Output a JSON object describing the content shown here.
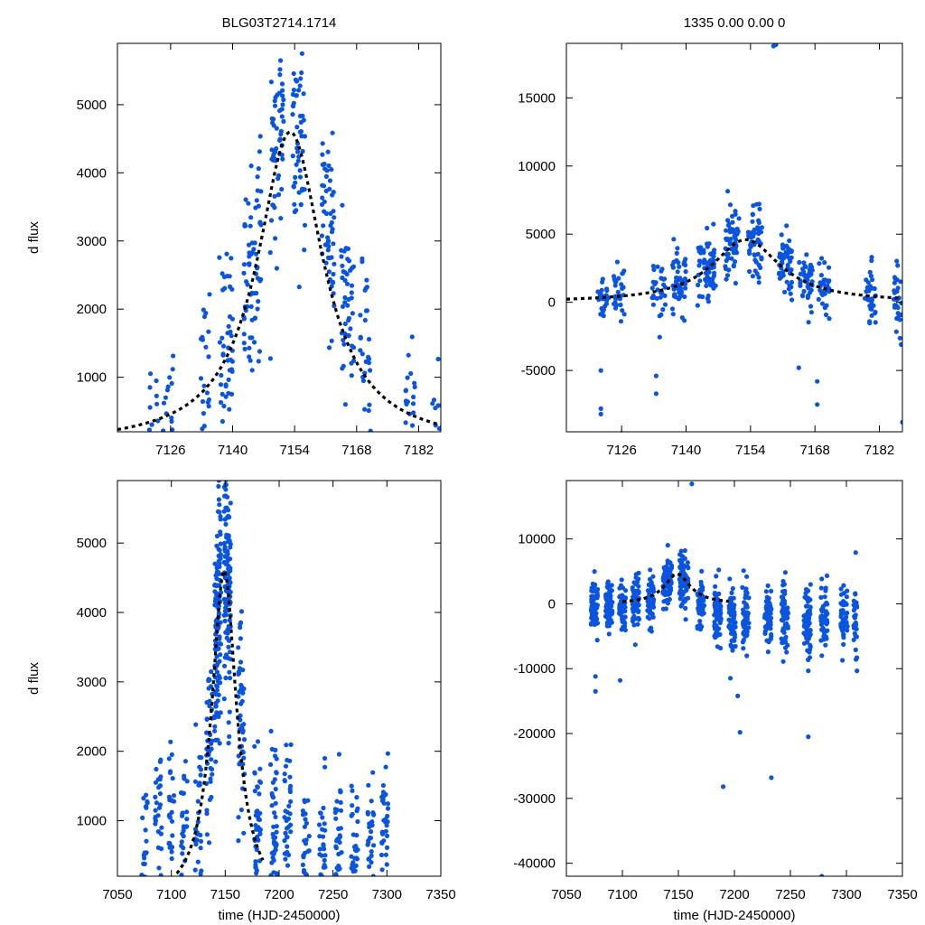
{
  "chart_data": [
    {
      "type": "scatter",
      "panel": "top-left",
      "title": "BLG03T2714.1714",
      "xlabel": "",
      "ylabel": "d flux",
      "xlim": [
        7114,
        7187
      ],
      "ylim": [
        200,
        5900
      ],
      "xticks": [
        7126,
        7140,
        7154,
        7168,
        7182
      ],
      "yticks": [
        1000,
        2000,
        3000,
        4000,
        5000
      ],
      "xtick_labels": [
        "7126",
        "7140",
        "7154",
        "7168",
        "7182"
      ],
      "ytick_labels": [
        "1000",
        "2000",
        "3000",
        "4000",
        "5000"
      ],
      "model": {
        "t0": 7153,
        "peak": 4600,
        "width": 9,
        "baseline": 0
      },
      "series": [
        {
          "name": "observations",
          "color": "#0a55e0",
          "clusters": [
            {
              "t": 7122,
              "spread": 1.2,
              "n": 18,
              "scale": 0.9,
              "noise": 600
            },
            {
              "t": 7125.5,
              "spread": 1.2,
              "n": 22,
              "scale": 1.0,
              "noise": 650
            },
            {
              "t": 7134,
              "spread": 1.5,
              "n": 25,
              "scale": 1.05,
              "noise": 700
            },
            {
              "t": 7138.5,
              "spread": 1.5,
              "n": 45,
              "scale": 1.15,
              "noise": 700
            },
            {
              "t": 7144.5,
              "spread": 2.0,
              "n": 70,
              "scale": 1.05,
              "noise": 750
            },
            {
              "t": 7150,
              "spread": 1.5,
              "n": 60,
              "scale": 1.1,
              "noise": 800
            },
            {
              "t": 7155,
              "spread": 1.5,
              "n": 55,
              "scale": 1.0,
              "noise": 800
            },
            {
              "t": 7161.5,
              "spread": 1.5,
              "n": 55,
              "scale": 1.35,
              "noise": 600
            },
            {
              "t": 7166,
              "spread": 1.5,
              "n": 45,
              "scale": 1.3,
              "noise": 600
            },
            {
              "t": 7170,
              "spread": 1.2,
              "n": 30,
              "scale": 1.2,
              "noise": 600
            },
            {
              "t": 7180,
              "spread": 1.2,
              "n": 25,
              "scale": 1.1,
              "noise": 500
            },
            {
              "t": 7186,
              "spread": 1.0,
              "n": 15,
              "scale": 1.0,
              "noise": 500
            }
          ]
        }
      ]
    },
    {
      "type": "scatter",
      "panel": "top-right",
      "title": "1335  0.00  0.00  0",
      "xlabel": "",
      "ylabel": "",
      "xlim": [
        7114,
        7187
      ],
      "ylim": [
        -9500,
        19000
      ],
      "xticks": [
        7126,
        7140,
        7154,
        7168,
        7182
      ],
      "yticks": [
        -5000,
        0,
        5000,
        10000,
        15000
      ],
      "xtick_labels": [
        "7126",
        "7140",
        "7154",
        "7168",
        "7182"
      ],
      "ytick_labels": [
        "-5000",
        "0",
        "5000",
        "10000",
        "15000"
      ],
      "model": {
        "t0": 7153,
        "peak": 4600,
        "width": 9,
        "baseline": 0
      },
      "outliers": [
        [
          7121.5,
          -8200
        ],
        [
          7121.5,
          -7800
        ],
        [
          7121.5,
          -5000
        ],
        [
          7126,
          -9600
        ],
        [
          7133.5,
          -6700
        ],
        [
          7133.5,
          -5400
        ],
        [
          7159,
          18800
        ],
        [
          7159.5,
          18900
        ],
        [
          7164.5,
          -4800
        ],
        [
          7168.5,
          -5800
        ],
        [
          7168.5,
          -7500
        ],
        [
          7187,
          -8800
        ]
      ],
      "series": [
        {
          "name": "observations",
          "color": "#0a55e0",
          "clusters": [
            {
              "t": 7122,
              "spread": 1.2,
              "n": 25,
              "scale": 1.0,
              "noise": 1100
            },
            {
              "t": 7125.5,
              "spread": 1.2,
              "n": 30,
              "scale": 1.0,
              "noise": 1200
            },
            {
              "t": 7134,
              "spread": 1.5,
              "n": 30,
              "scale": 1.0,
              "noise": 1200
            },
            {
              "t": 7138.5,
              "spread": 1.5,
              "n": 50,
              "scale": 1.1,
              "noise": 1100
            },
            {
              "t": 7144.5,
              "spread": 2.0,
              "n": 70,
              "scale": 1.0,
              "noise": 1200
            },
            {
              "t": 7150,
              "spread": 1.5,
              "n": 60,
              "scale": 1.05,
              "noise": 1300
            },
            {
              "t": 7155,
              "spread": 1.5,
              "n": 55,
              "scale": 1.0,
              "noise": 1300
            },
            {
              "t": 7161.5,
              "spread": 1.5,
              "n": 55,
              "scale": 1.2,
              "noise": 1100
            },
            {
              "t": 7166,
              "spread": 1.5,
              "n": 45,
              "scale": 1.2,
              "noise": 1100
            },
            {
              "t": 7170,
              "spread": 1.2,
              "n": 30,
              "scale": 1.1,
              "noise": 1100
            },
            {
              "t": 7180,
              "spread": 1.2,
              "n": 35,
              "scale": 1.0,
              "noise": 1200
            },
            {
              "t": 7186,
              "spread": 1.0,
              "n": 30,
              "scale": 1.0,
              "noise": 1300
            }
          ]
        }
      ]
    },
    {
      "type": "scatter",
      "panel": "bottom-left",
      "title": "",
      "xlabel": "time (HJD-2450000)",
      "ylabel": "d flux",
      "xlim": [
        7050,
        7350
      ],
      "ylim": [
        200,
        5900
      ],
      "xticks": [
        7050,
        7100,
        7150,
        7200,
        7250,
        7300,
        7350
      ],
      "yticks": [
        1000,
        2000,
        3000,
        4000,
        5000
      ],
      "xtick_labels": [
        "7050",
        "7100",
        "7150",
        "7200",
        "7250",
        "7300",
        "7350"
      ],
      "ytick_labels": [
        "1000",
        "2000",
        "3000",
        "4000",
        "5000"
      ],
      "model": {
        "t0": 7149,
        "peak": 4600,
        "width": 14,
        "baseline": -200,
        "xmin": 7105,
        "xmax": 7185
      },
      "series": [
        {
          "name": "observations",
          "color": "#0a55e0",
          "clusters": [
            {
              "t": 7075,
              "spread": 3,
              "n": 25,
              "scale": 0.0,
              "noise": 500,
              "offset": 700
            },
            {
              "t": 7088,
              "spread": 3,
              "n": 30,
              "scale": 0.0,
              "noise": 600,
              "offset": 800
            },
            {
              "t": 7100,
              "spread": 3,
              "n": 30,
              "scale": 0.0,
              "noise": 600,
              "offset": 800
            },
            {
              "t": 7112,
              "spread": 3,
              "n": 30,
              "scale": 0.0,
              "noise": 600,
              "offset": 900
            },
            {
              "t": 7125,
              "spread": 3,
              "n": 30,
              "scale": 0.0,
              "noise": 650,
              "offset": 1000
            },
            {
              "t": 7135,
              "spread": 3,
              "n": 40,
              "scale": 0.7,
              "noise": 700,
              "offset": 400
            },
            {
              "t": 7143,
              "spread": 3,
              "n": 120,
              "scale": 1.0,
              "noise": 800,
              "offset": 0
            },
            {
              "t": 7152,
              "spread": 3,
              "n": 120,
              "scale": 1.0,
              "noise": 800,
              "offset": 0
            },
            {
              "t": 7165,
              "spread": 3,
              "n": 50,
              "scale": 1.0,
              "noise": 700,
              "offset": 700
            },
            {
              "t": 7180,
              "spread": 3,
              "n": 45,
              "scale": 0.0,
              "noise": 600,
              "offset": 1000
            },
            {
              "t": 7195,
              "spread": 3,
              "n": 45,
              "scale": 0.0,
              "noise": 600,
              "offset": 900
            },
            {
              "t": 7208,
              "spread": 3,
              "n": 40,
              "scale": 0.0,
              "noise": 600,
              "offset": 900
            },
            {
              "t": 7225,
              "spread": 3,
              "n": 35,
              "scale": 0.0,
              "noise": 500,
              "offset": 600
            },
            {
              "t": 7240,
              "spread": 3,
              "n": 35,
              "scale": 0.0,
              "noise": 500,
              "offset": 600
            },
            {
              "t": 7255,
              "spread": 3,
              "n": 35,
              "scale": 0.0,
              "noise": 500,
              "offset": 600
            },
            {
              "t": 7270,
              "spread": 3,
              "n": 30,
              "scale": 0.0,
              "noise": 500,
              "offset": 600
            },
            {
              "t": 7285,
              "spread": 3,
              "n": 30,
              "scale": 0.0,
              "noise": 500,
              "offset": 600
            },
            {
              "t": 7298,
              "spread": 3,
              "n": 35,
              "scale": 0.0,
              "noise": 550,
              "offset": 900
            }
          ]
        }
      ]
    },
    {
      "type": "scatter",
      "panel": "bottom-right",
      "title": "",
      "xlabel": "time (HJD-2450000)",
      "ylabel": "",
      "xlim": [
        7050,
        7350
      ],
      "ylim": [
        -42000,
        19000
      ],
      "xticks": [
        7050,
        7100,
        7150,
        7200,
        7250,
        7300,
        7350
      ],
      "yticks": [
        -40000,
        -30000,
        -20000,
        -10000,
        0,
        10000
      ],
      "xtick_labels": [
        "7050",
        "7100",
        "7150",
        "7200",
        "7250",
        "7300",
        "7350"
      ],
      "ytick_labels": [
        "-40000",
        "-30000",
        "-20000",
        "-10000",
        "0",
        "10000"
      ],
      "model": {
        "t0": 7149,
        "peak": 4600,
        "width": 14,
        "baseline": 0,
        "xmin": 7100,
        "xmax": 7195
      },
      "outliers": [
        [
          7076,
          -13500
        ],
        [
          7076,
          -11200
        ],
        [
          7098,
          -11800
        ],
        [
          7190,
          -28200
        ],
        [
          7205,
          -19800
        ],
        [
          7203,
          -14200
        ],
        [
          7233,
          -26800
        ],
        [
          7266,
          -20500
        ],
        [
          7278,
          -42000
        ],
        [
          7162,
          18500
        ]
      ],
      "series": [
        {
          "name": "observations",
          "color": "#0a55e0",
          "clusters": [
            {
              "t": 7075,
              "spread": 3,
              "n": 60,
              "scale": 0.0,
              "noise": 2200,
              "offset": -500
            },
            {
              "t": 7088,
              "spread": 3,
              "n": 60,
              "scale": 0.0,
              "noise": 2000,
              "offset": -500
            },
            {
              "t": 7100,
              "spread": 3,
              "n": 60,
              "scale": 0.0,
              "noise": 2000,
              "offset": -500
            },
            {
              "t": 7112,
              "spread": 3,
              "n": 60,
              "scale": 0.0,
              "noise": 2000,
              "offset": -300
            },
            {
              "t": 7125,
              "spread": 3,
              "n": 60,
              "scale": 0.0,
              "noise": 2000,
              "offset": 0
            },
            {
              "t": 7140,
              "spread": 4,
              "n": 90,
              "scale": 1.0,
              "noise": 1800,
              "offset": 0
            },
            {
              "t": 7155,
              "spread": 4,
              "n": 90,
              "scale": 1.0,
              "noise": 1800,
              "offset": 0
            },
            {
              "t": 7170,
              "spread": 3,
              "n": 60,
              "scale": 0.0,
              "noise": 2000,
              "offset": 0
            },
            {
              "t": 7185,
              "spread": 3,
              "n": 60,
              "scale": 0.0,
              "noise": 2200,
              "offset": -1000
            },
            {
              "t": 7198,
              "spread": 3,
              "n": 70,
              "scale": 0.0,
              "noise": 2800,
              "offset": -2000
            },
            {
              "t": 7210,
              "spread": 3,
              "n": 60,
              "scale": 0.0,
              "noise": 2600,
              "offset": -2000
            },
            {
              "t": 7230,
              "spread": 3,
              "n": 60,
              "scale": 0.0,
              "noise": 2600,
              "offset": -2000
            },
            {
              "t": 7245,
              "spread": 3,
              "n": 60,
              "scale": 0.0,
              "noise": 2600,
              "offset": -2000
            },
            {
              "t": 7265,
              "spread": 3,
              "n": 60,
              "scale": 0.0,
              "noise": 2600,
              "offset": -2500
            },
            {
              "t": 7280,
              "spread": 3,
              "n": 55,
              "scale": 0.0,
              "noise": 2600,
              "offset": -2500
            },
            {
              "t": 7298,
              "spread": 3,
              "n": 40,
              "scale": 0.0,
              "noise": 2400,
              "offset": -2000
            },
            {
              "t": 7308,
              "spread": 1.5,
              "n": 30,
              "scale": 0.0,
              "noise": 3200,
              "offset": -3500
            }
          ]
        }
      ]
    }
  ]
}
